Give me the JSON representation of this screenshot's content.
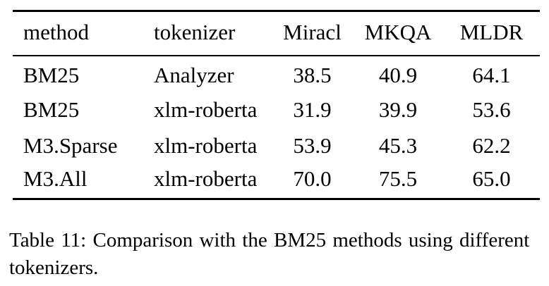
{
  "table": {
    "columns": [
      "method",
      "tokenizer",
      "Miracl",
      "MKQA",
      "MLDR"
    ],
    "rows": [
      [
        "BM25",
        "Analyzer",
        "38.5",
        "40.9",
        "64.1"
      ],
      [
        "BM25",
        "xlm-roberta",
        "31.9",
        "39.9",
        "53.6"
      ],
      [
        "M3.Sparse",
        "xlm-roberta",
        "53.9",
        "45.3",
        "62.2"
      ],
      [
        "M3.All",
        "xlm-roberta",
        "70.0",
        "75.5",
        "65.0"
      ]
    ]
  },
  "caption": {
    "text": "Table 11: Comparison with the BM25 methods using different tokenizers."
  }
}
